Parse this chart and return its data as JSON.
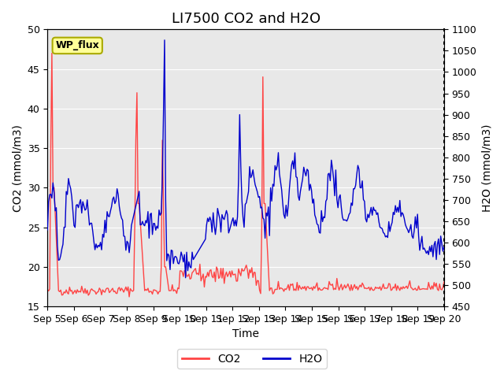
{
  "title": "LI7500 CO2 and H2O",
  "xlabel": "Time",
  "ylabel_left": "CO2 (mmol/m3)",
  "ylabel_right": "H2O (mmol/m3)",
  "site_label": "WP_flux",
  "ylim_left": [
    15,
    50
  ],
  "ylim_right": [
    450,
    1100
  ],
  "yticks_left": [
    15,
    20,
    25,
    30,
    35,
    40,
    45,
    50
  ],
  "yticks_right": [
    450,
    500,
    550,
    600,
    650,
    700,
    750,
    800,
    850,
    900,
    950,
    1000,
    1050,
    1100
  ],
  "xtick_labels": [
    "Sep 5",
    "Sep 6",
    "Sep 7",
    "Sep 8",
    "Sep 9",
    "Sep 10",
    "Sep 11",
    "Sep 12",
    "Sep 13",
    "Sep 14",
    "Sep 15",
    "Sep 16",
    "Sep 17",
    "Sep 18",
    "Sep 19",
    "Sep 20"
  ],
  "co2_color": "#FF4444",
  "h2o_color": "#0000CC",
  "background_color": "#E8E8E8",
  "grid_color": "#FFFFFF",
  "legend_co2": "CO2",
  "legend_h2o": "H2O",
  "title_fontsize": 13,
  "axis_fontsize": 10,
  "tick_fontsize": 9
}
